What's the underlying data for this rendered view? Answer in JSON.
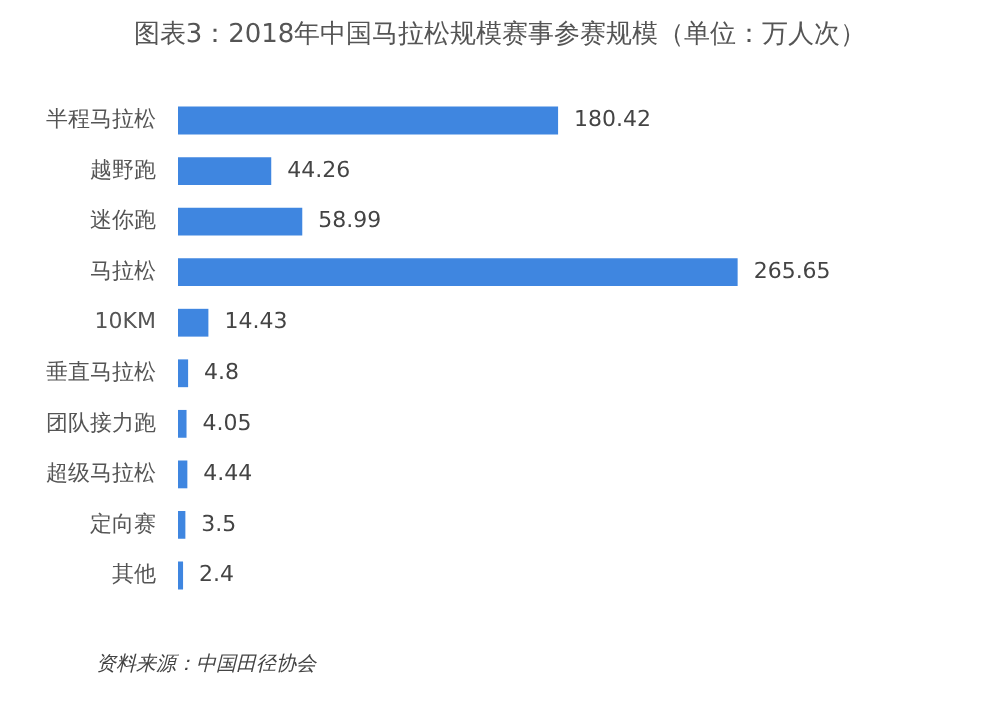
{
  "chart_data": {
    "type": "bar",
    "orientation": "horizontal",
    "title": "图表3：2018年中国马拉松规模赛事参赛规模（单位：万人次）",
    "categories": [
      "半程马拉松",
      "越野跑",
      "迷你跑",
      "马拉松",
      "10KM",
      "垂直马拉松",
      "团队接力跑",
      "超级马拉松",
      "定向赛",
      "其他"
    ],
    "values": [
      180.42,
      44.26,
      58.99,
      265.65,
      14.43,
      4.8,
      4.05,
      4.44,
      3.5,
      2.4
    ],
    "color": "#3f86e0",
    "data_labels": true,
    "legend": false,
    "annotations": [
      "资料来源：中国田径协会"
    ]
  }
}
